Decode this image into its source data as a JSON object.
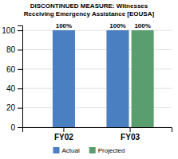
{
  "chart_data": {
    "type": "bar",
    "title": "DISCONTINUED MEASURE: Witnesses\nReceiving Emergency Assistance [EOUSA]",
    "categories": [
      "FY02",
      "FY03"
    ],
    "series": [
      {
        "name": "Actual",
        "color": "#4A7FC1",
        "values": [
          100,
          100
        ],
        "value_labels": [
          "100%",
          "100%"
        ]
      },
      {
        "name": "Projected",
        "color": "#5A9E6F",
        "values": [
          null,
          100
        ],
        "value_labels": [
          null,
          "100%"
        ]
      }
    ],
    "data_labels": true,
    "ylim": [
      0,
      105
    ],
    "yticks": [
      0,
      20,
      40,
      60,
      80,
      100
    ],
    "grid": true,
    "legend": "bottom"
  }
}
